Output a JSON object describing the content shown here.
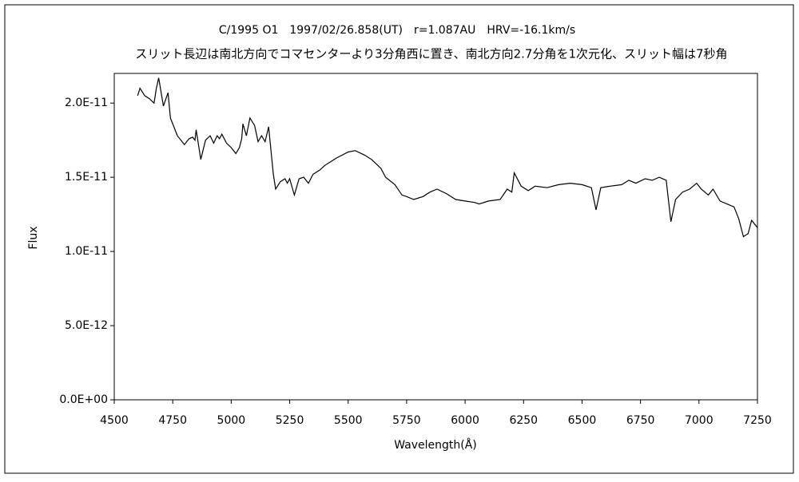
{
  "chart_data": {
    "type": "line",
    "title": "C/1995 O1　1997/02/26.858(UT)　r=1.087AU　HRV=-16.1km/s",
    "subtitle": "スリット長辺は南北方向でコマセンターより3分角西に置き、南北方向2.7分角を1次元化、スリット幅は7秒角",
    "x_label": "Wavelength(Å)",
    "y_label": "Flux",
    "xlim": [
      4500,
      7250
    ],
    "xticks": [
      4500,
      4750,
      5000,
      5250,
      5500,
      5750,
      6000,
      6250,
      6500,
      6750,
      7000,
      7250
    ],
    "ylim": [
      0,
      2.2e-11
    ],
    "yticks": [
      {
        "value": 0,
        "label": "0.0E+00"
      },
      {
        "value": 5e-12,
        "label": "5.0E-12"
      },
      {
        "value": 1e-11,
        "label": "1.0E-11"
      },
      {
        "value": 1.5e-11,
        "label": "1.5E-11"
      },
      {
        "value": 2e-11,
        "label": "2.0E-11"
      }
    ],
    "grid": false,
    "series": [
      {
        "color": "#000000",
        "x": [
          4600,
          4610,
          4630,
          4650,
          4670,
          4680,
          4690,
          4710,
          4730,
          4740,
          4770,
          4800,
          4820,
          4835,
          4845,
          4850,
          4870,
          4890,
          4910,
          4925,
          4940,
          4950,
          4960,
          4980,
          5000,
          5020,
          5035,
          5045,
          5050,
          5065,
          5080,
          5100,
          5115,
          5130,
          5145,
          5160,
          5180,
          5190,
          5210,
          5230,
          5240,
          5250,
          5270,
          5290,
          5310,
          5330,
          5350,
          5380,
          5400,
          5450,
          5500,
          5530,
          5570,
          5600,
          5640,
          5660,
          5700,
          5730,
          5750,
          5780,
          5820,
          5850,
          5880,
          5920,
          5960,
          6000,
          6040,
          6060,
          6100,
          6150,
          6180,
          6200,
          6210,
          6240,
          6270,
          6300,
          6350,
          6400,
          6450,
          6500,
          6540,
          6560,
          6580,
          6620,
          6670,
          6700,
          6730,
          6770,
          6800,
          6830,
          6860,
          6880,
          6900,
          6930,
          6960,
          6990,
          7010,
          7040,
          7060,
          7090,
          7120,
          7150,
          7170,
          7190,
          7210,
          7225,
          7250
        ],
        "values": [
          2.05e-11,
          2.1e-11,
          2.05e-11,
          2.03e-11,
          2e-11,
          2.1e-11,
          2.17e-11,
          1.98e-11,
          2.07e-11,
          1.9e-11,
          1.78e-11,
          1.72e-11,
          1.76e-11,
          1.77e-11,
          1.75e-11,
          1.82e-11,
          1.62e-11,
          1.75e-11,
          1.78e-11,
          1.73e-11,
          1.78e-11,
          1.76e-11,
          1.79e-11,
          1.73e-11,
          1.7e-11,
          1.66e-11,
          1.7e-11,
          1.76e-11,
          1.86e-11,
          1.78e-11,
          1.9e-11,
          1.85e-11,
          1.74e-11,
          1.78e-11,
          1.74e-11,
          1.84e-11,
          1.52e-11,
          1.42e-11,
          1.47e-11,
          1.49e-11,
          1.46e-11,
          1.49e-11,
          1.38e-11,
          1.49e-11,
          1.5e-11,
          1.46e-11,
          1.52e-11,
          1.55e-11,
          1.58e-11,
          1.63e-11,
          1.67e-11,
          1.68e-11,
          1.65e-11,
          1.62e-11,
          1.56e-11,
          1.5e-11,
          1.45e-11,
          1.38e-11,
          1.37e-11,
          1.35e-11,
          1.37e-11,
          1.4e-11,
          1.42e-11,
          1.39e-11,
          1.35e-11,
          1.34e-11,
          1.33e-11,
          1.32e-11,
          1.34e-11,
          1.35e-11,
          1.42e-11,
          1.4e-11,
          1.53e-11,
          1.44e-11,
          1.41e-11,
          1.44e-11,
          1.43e-11,
          1.45e-11,
          1.46e-11,
          1.45e-11,
          1.43e-11,
          1.28e-11,
          1.43e-11,
          1.44e-11,
          1.45e-11,
          1.48e-11,
          1.46e-11,
          1.49e-11,
          1.48e-11,
          1.5e-11,
          1.48e-11,
          1.2e-11,
          1.35e-11,
          1.4e-11,
          1.42e-11,
          1.46e-11,
          1.42e-11,
          1.38e-11,
          1.42e-11,
          1.34e-11,
          1.32e-11,
          1.3e-11,
          1.22e-11,
          1.1e-11,
          1.12e-11,
          1.21e-11,
          1.16e-11
        ]
      }
    ]
  }
}
